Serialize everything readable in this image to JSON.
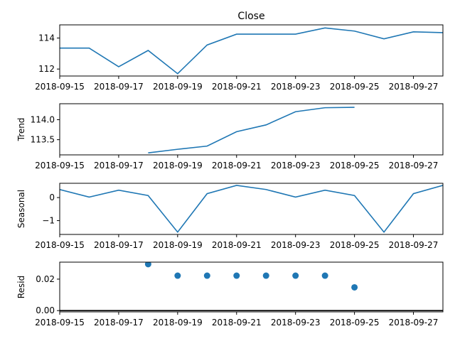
{
  "colors": {
    "series": "#1f77b4",
    "axis": "#000000",
    "background": "#ffffff"
  },
  "chart_data": [
    {
      "type": "line",
      "title": "Close",
      "ylabel": "",
      "x": [
        "2018-09-15",
        "2018-09-16",
        "2018-09-17",
        "2018-09-18",
        "2018-09-19",
        "2018-09-20",
        "2018-09-21",
        "2018-09-22",
        "2018-09-23",
        "2018-09-24",
        "2018-09-25",
        "2018-09-26",
        "2018-09-27",
        "2018-09-28"
      ],
      "values": [
        113.35,
        113.35,
        112.15,
        113.2,
        111.7,
        113.55,
        114.25,
        114.25,
        114.25,
        114.65,
        114.45,
        113.95,
        114.4,
        114.35
      ],
      "ylim": [
        111.55,
        114.85
      ],
      "yticks": [
        112,
        114
      ],
      "yticklabels": [
        "112",
        "114"
      ]
    },
    {
      "type": "line",
      "title": "",
      "ylabel": "Trend",
      "x": [
        "2018-09-18",
        "2018-09-19",
        "2018-09-20",
        "2018-09-21",
        "2018-09-22",
        "2018-09-23",
        "2018-09-24",
        "2018-09-25"
      ],
      "values": [
        113.17,
        113.26,
        113.34,
        113.7,
        113.87,
        114.2,
        114.3,
        114.31
      ],
      "ylim": [
        113.12,
        114.4
      ],
      "yticks": [
        113.5,
        114.0
      ],
      "yticklabels": [
        "113.5",
        "114.0"
      ]
    },
    {
      "type": "line",
      "title": "",
      "ylabel": "Seasonal",
      "x": [
        "2018-09-15",
        "2018-09-16",
        "2018-09-17",
        "2018-09-18",
        "2018-09-19",
        "2018-09-20",
        "2018-09-21",
        "2018-09-22",
        "2018-09-23",
        "2018-09-24",
        "2018-09-25",
        "2018-09-26",
        "2018-09-27",
        "2018-09-28"
      ],
      "values": [
        0.35,
        0.02,
        0.32,
        0.09,
        -1.5,
        0.17,
        0.53,
        0.35,
        0.02,
        0.32,
        0.09,
        -1.5,
        0.17,
        0.53
      ],
      "ylim": [
        -1.6,
        0.62
      ],
      "yticks": [
        -1,
        0
      ],
      "yticklabels": [
        "−1",
        "0"
      ]
    },
    {
      "type": "scatter",
      "title": "",
      "ylabel": "Resid",
      "x": [
        "2018-09-18",
        "2018-09-19",
        "2018-09-20",
        "2018-09-21",
        "2018-09-22",
        "2018-09-23",
        "2018-09-24",
        "2018-09-25"
      ],
      "values": [
        0.0295,
        0.0222,
        0.0222,
        0.0222,
        0.0222,
        0.0222,
        0.0222,
        0.0148
      ],
      "baseline": 0,
      "ylim": [
        -0.0008,
        0.0308
      ],
      "yticks": [
        0.0,
        0.02
      ],
      "yticklabels": [
        "0.00",
        "0.02"
      ]
    }
  ],
  "x_axis": {
    "range": [
      "2018-09-15",
      "2018-09-28"
    ],
    "ticks": [
      "2018-09-15",
      "2018-09-17",
      "2018-09-19",
      "2018-09-21",
      "2018-09-23",
      "2018-09-25",
      "2018-09-27"
    ]
  }
}
